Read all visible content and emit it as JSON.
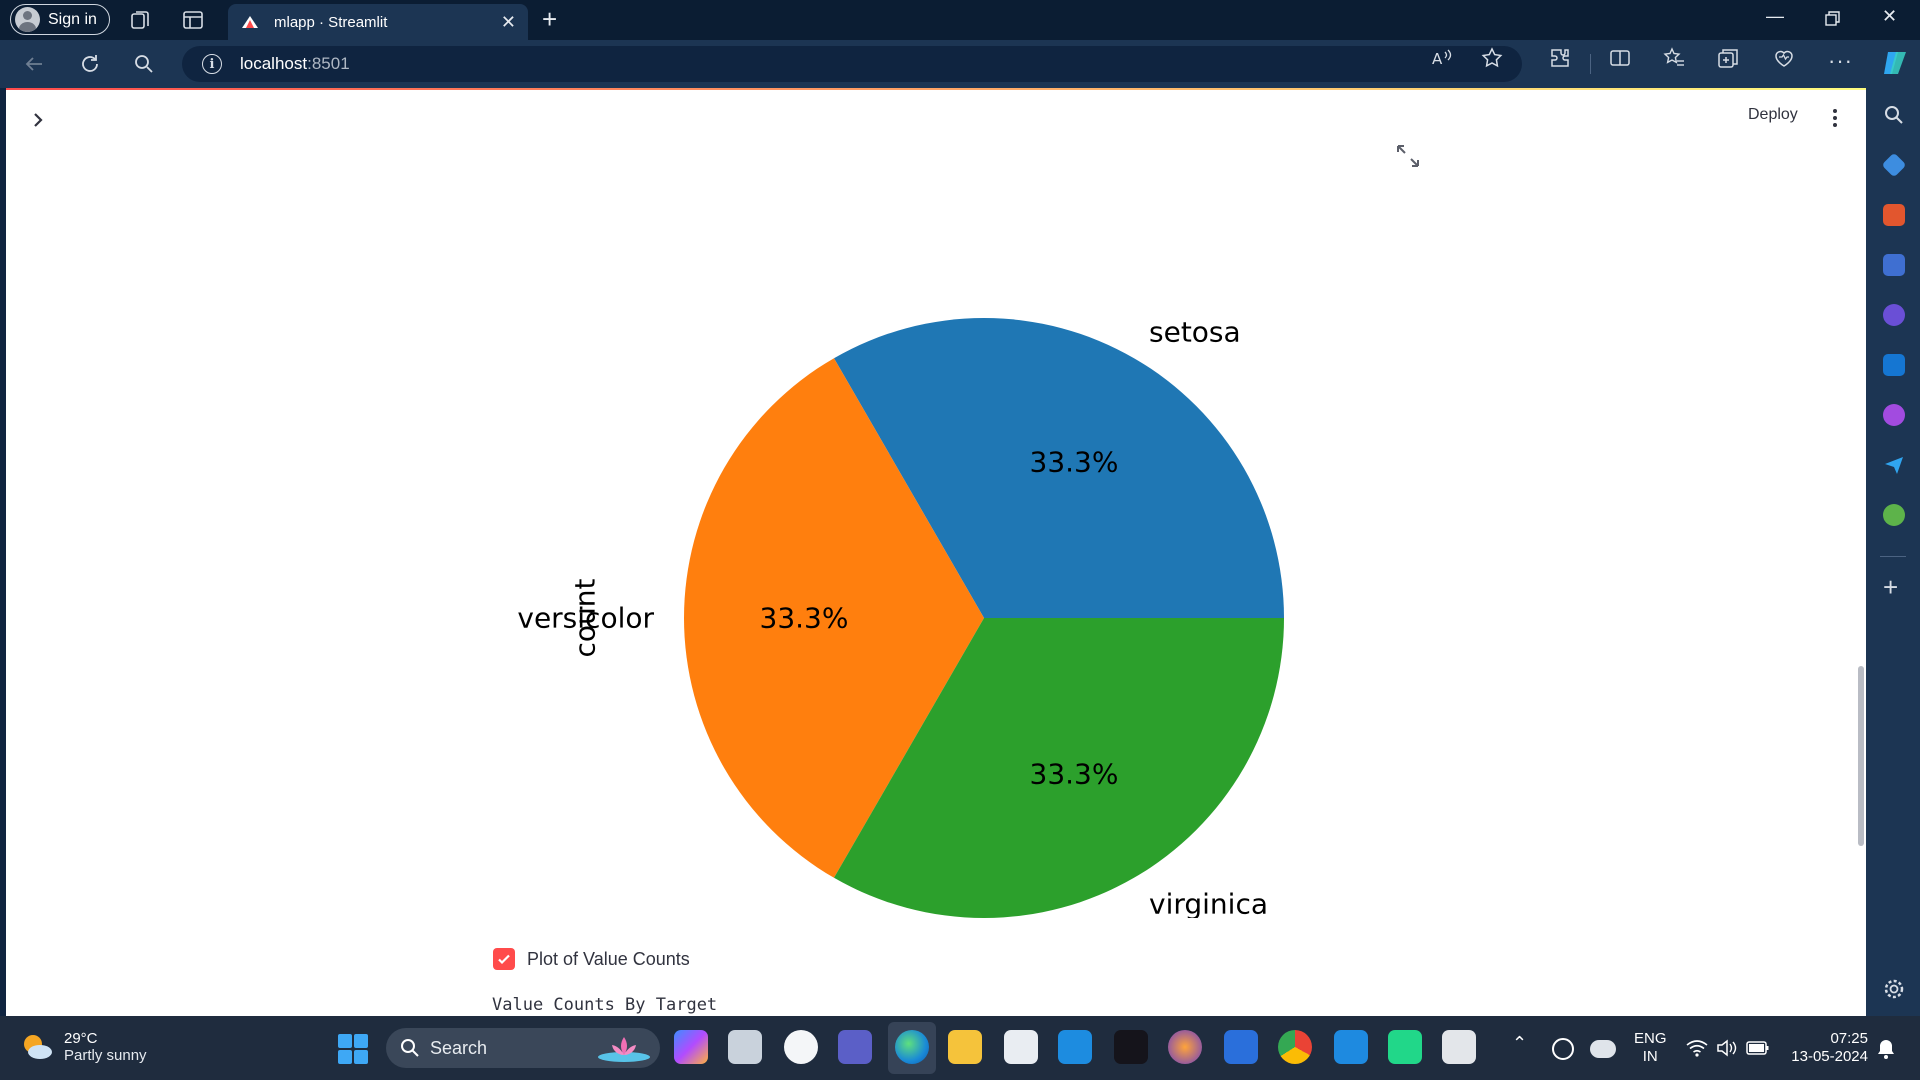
{
  "browser": {
    "signin_label": "Sign in",
    "tab_title": "mlapp · Streamlit",
    "url_host": "localhost",
    "url_port": ":8501"
  },
  "app": {
    "deploy_label": "Deploy",
    "checkbox_label": "Plot of Value Counts",
    "checkbox_checked": true,
    "section_title": "Value Counts By Target",
    "accent_color": "#ff4b4b"
  },
  "chart_data": {
    "type": "pie",
    "title": "",
    "ylabel": "count",
    "categories": [
      "setosa",
      "versicolor",
      "virginica"
    ],
    "values": [
      33.3,
      33.3,
      33.3
    ],
    "percent_labels": [
      "33.3%",
      "33.3%",
      "33.3%"
    ],
    "colors": [
      "#1f77b4",
      "#ff7f0e",
      "#2ca02c"
    ]
  },
  "taskbar": {
    "weather_temp": "29°C",
    "weather_desc": "Partly sunny",
    "search_placeholder": "Search",
    "lang_line1": "ENG",
    "lang_line2": "IN",
    "time": "07:25",
    "date": "13-05-2024"
  }
}
